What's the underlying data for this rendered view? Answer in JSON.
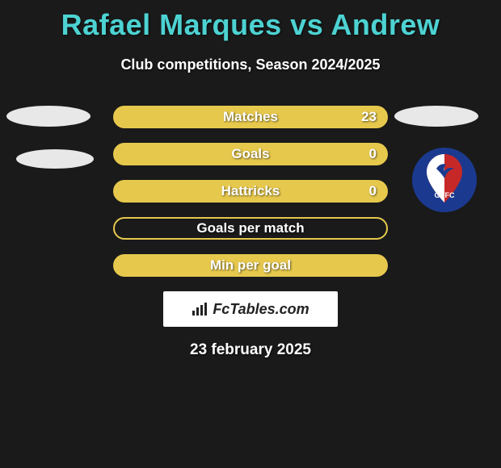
{
  "header": {
    "title": "Rafael Marques vs Andrew",
    "subtitle": "Club competitions, Season 2024/2025",
    "title_color": "#4dd2d2",
    "title_fontsize": 36
  },
  "stats": {
    "pill_border_color": "#e6c84d",
    "pill_fill_color": "#e6c84d",
    "pill_width": 340,
    "pill_height": 28,
    "pill_border_radius": 14,
    "label_fontsize": 17,
    "label_color": "#ffffff",
    "rows": [
      {
        "label": "Matches",
        "value": "23",
        "filled": true
      },
      {
        "label": "Goals",
        "value": "0",
        "filled": true
      },
      {
        "label": "Hattricks",
        "value": "0",
        "filled": true
      },
      {
        "label": "Goals per match",
        "value": "",
        "filled": false
      },
      {
        "label": "Min per goal",
        "value": "",
        "filled": true
      }
    ]
  },
  "left_placeholders": {
    "ellipse_color": "#e8e8e8",
    "count": 2
  },
  "right_placeholders": {
    "ellipse_color": "#e8e8e8"
  },
  "crest": {
    "name": "gvfc-crest",
    "bg_color": "#1b3a8f",
    "accent_color": "#c62828",
    "text": "GVFC"
  },
  "branding": {
    "logo_text": "FcTables.com",
    "logo_bg": "#ffffff",
    "logo_text_color": "#222222"
  },
  "footer": {
    "date": "23 february 2025"
  },
  "background_color": "#1a1a1a"
}
